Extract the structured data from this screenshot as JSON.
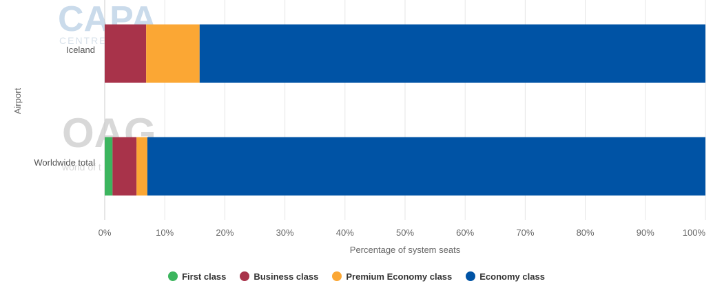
{
  "chart_data": {
    "type": "bar",
    "orientation": "horizontal",
    "stacking": "percent",
    "categories": [
      "Iceland",
      "Worldwide total"
    ],
    "series": [
      {
        "name": "First class",
        "values": [
          0,
          1.3
        ],
        "color": "#3cb55e"
      },
      {
        "name": "Business class",
        "values": [
          6.9,
          4.0
        ],
        "color": "#a8334a"
      },
      {
        "name": "Premium Economy class",
        "values": [
          8.9,
          1.8
        ],
        "color": "#fba734"
      },
      {
        "name": "Economy class",
        "values": [
          84.2,
          92.9
        ],
        "color": "#0053a5"
      }
    ],
    "xlabel": "Percentage of system seats",
    "ylabel": "Airport",
    "xlim": [
      0,
      100
    ],
    "xticks": [
      "0%",
      "10%",
      "20%",
      "30%",
      "40%",
      "50%",
      "60%",
      "70%",
      "80%",
      "90%",
      "100%"
    ],
    "grid": true,
    "legend": "bottom-center"
  },
  "watermarks": {
    "capa_logo": "CAPA",
    "capa_sub": "CENTRE",
    "oag_logo": "OAG",
    "oag_tagline": "world of t"
  }
}
